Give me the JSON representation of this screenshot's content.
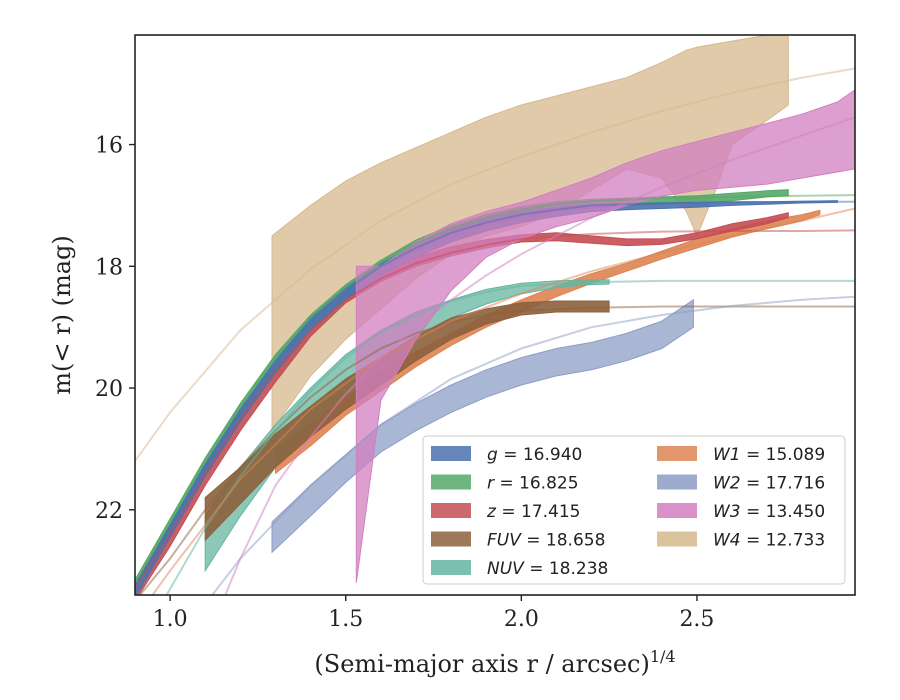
{
  "chart_data": {
    "type": "line",
    "xlabel": "(Semi-major axis r / arcsec)",
    "xlabel_sup": "1/4",
    "ylabel": "m(< r) (mag)",
    "xlim": [
      0.9,
      2.95
    ],
    "ylim": [
      23.4,
      14.2
    ],
    "y_inverted": true,
    "x_ticks": [
      1.0,
      1.5,
      2.0,
      2.5
    ],
    "x_tick_labels": [
      "1.0",
      "1.5",
      "2.0",
      "2.5"
    ],
    "y_ticks": [
      16,
      18,
      20,
      22
    ],
    "y_tick_labels": [
      "16",
      "18",
      "20",
      "22"
    ],
    "grid": false,
    "legend_placement": "lower right",
    "legend_columns": 2,
    "series": [
      {
        "name": "g",
        "value": "16.940",
        "color": "#4c72b0",
        "model": {
          "x": [
            0.9,
            1.0,
            1.1,
            1.2,
            1.3,
            1.4,
            1.5,
            1.6,
            1.7,
            1.8,
            1.9,
            2.0,
            2.1,
            2.2,
            2.4,
            2.6,
            2.8,
            2.95
          ],
          "y": [
            23.3,
            22.3,
            21.3,
            20.4,
            19.6,
            18.9,
            18.4,
            18.0,
            17.7,
            17.45,
            17.28,
            17.15,
            17.07,
            17.0,
            16.96,
            16.95,
            16.94,
            16.94
          ]
        },
        "band": {
          "x": [
            0.9,
            1.0,
            1.1,
            1.2,
            1.3,
            1.4,
            1.5,
            1.6,
            1.7,
            1.8,
            1.9,
            2.0,
            2.1,
            2.2,
            2.3,
            2.4,
            2.5,
            2.6,
            2.7,
            2.8,
            2.9
          ],
          "y_upper": [
            23.25,
            22.25,
            21.25,
            20.35,
            19.55,
            18.85,
            18.35,
            17.95,
            17.65,
            17.4,
            17.23,
            17.1,
            17.03,
            16.98,
            16.97,
            16.96,
            16.95,
            16.94,
            16.94,
            16.93,
            16.92
          ],
          "y_lower": [
            23.45,
            22.45,
            21.45,
            20.55,
            19.75,
            19.05,
            18.55,
            18.15,
            17.85,
            17.6,
            17.42,
            17.28,
            17.18,
            17.1,
            17.07,
            17.05,
            17.03,
            17.0,
            16.98,
            16.96,
            16.95
          ]
        }
      },
      {
        "name": "r",
        "value": "16.825",
        "color": "#55a868",
        "model": {
          "x": [
            0.9,
            1.0,
            1.1,
            1.2,
            1.3,
            1.4,
            1.5,
            1.6,
            1.7,
            1.8,
            1.9,
            2.0,
            2.1,
            2.2,
            2.4,
            2.6,
            2.8,
            2.95
          ],
          "y": [
            23.2,
            22.2,
            21.2,
            20.3,
            19.5,
            18.85,
            18.35,
            17.95,
            17.62,
            17.38,
            17.2,
            17.07,
            16.98,
            16.93,
            16.88,
            16.86,
            16.84,
            16.83
          ]
        },
        "band": {
          "x": [
            0.9,
            1.0,
            1.1,
            1.2,
            1.3,
            1.4,
            1.5,
            1.6,
            1.7,
            1.8,
            1.9,
            2.0,
            2.1,
            2.2,
            2.3,
            2.4,
            2.5,
            2.6,
            2.7,
            2.76
          ],
          "y_upper": [
            23.15,
            22.15,
            21.15,
            20.25,
            19.45,
            18.8,
            18.3,
            17.9,
            17.57,
            17.33,
            17.15,
            17.02,
            16.94,
            16.9,
            16.88,
            16.86,
            16.84,
            16.8,
            16.76,
            16.74
          ],
          "y_lower": [
            23.35,
            22.35,
            21.35,
            20.45,
            19.65,
            19.0,
            18.5,
            18.1,
            17.77,
            17.53,
            17.35,
            17.2,
            17.1,
            17.04,
            17.0,
            16.98,
            16.96,
            16.92,
            16.86,
            16.84
          ]
        }
      },
      {
        "name": "z",
        "value": "17.415",
        "color": "#c44e52",
        "model": {
          "x": [
            0.9,
            1.0,
            1.1,
            1.2,
            1.3,
            1.4,
            1.5,
            1.6,
            1.7,
            1.8,
            1.9,
            2.0,
            2.2,
            2.4,
            2.6,
            2.8,
            2.95
          ],
          "y": [
            23.3,
            22.4,
            21.4,
            20.5,
            19.7,
            19.05,
            18.55,
            18.2,
            17.95,
            17.78,
            17.65,
            17.55,
            17.47,
            17.43,
            17.42,
            17.42,
            17.41
          ]
        },
        "band": {
          "x": [
            0.9,
            1.0,
            1.1,
            1.2,
            1.3,
            1.4,
            1.5,
            1.6,
            1.7,
            1.8,
            1.9,
            2.0,
            2.1,
            2.2,
            2.3,
            2.4,
            2.5,
            2.6,
            2.7,
            2.76
          ],
          "y_upper": [
            23.2,
            22.3,
            21.3,
            20.4,
            19.6,
            18.95,
            18.45,
            18.1,
            17.85,
            17.68,
            17.56,
            17.48,
            17.45,
            17.5,
            17.55,
            17.55,
            17.45,
            17.3,
            17.2,
            17.12
          ],
          "y_lower": [
            23.5,
            22.6,
            21.6,
            20.7,
            19.9,
            19.15,
            18.6,
            18.25,
            18.0,
            17.83,
            17.7,
            17.6,
            17.58,
            17.62,
            17.66,
            17.64,
            17.55,
            17.42,
            17.3,
            17.2
          ]
        }
      },
      {
        "name": "FUV",
        "value": "18.658",
        "color": "#8c613c",
        "model": {
          "x": [
            0.9,
            1.0,
            1.1,
            1.2,
            1.3,
            1.4,
            1.5,
            1.6,
            1.7,
            1.8,
            1.9,
            2.0,
            2.2,
            2.4,
            2.6,
            2.8,
            2.95
          ],
          "y": [
            23.5,
            22.8,
            22.0,
            21.3,
            20.7,
            20.15,
            19.7,
            19.35,
            19.1,
            18.92,
            18.8,
            18.73,
            18.68,
            18.66,
            18.66,
            18.66,
            18.66
          ]
        },
        "band": {
          "x": [
            1.1,
            1.2,
            1.3,
            1.4,
            1.5,
            1.6,
            1.7,
            1.8,
            1.9,
            2.0,
            2.1,
            2.2,
            2.25
          ],
          "y_upper": [
            21.8,
            21.3,
            20.75,
            20.3,
            19.85,
            19.5,
            19.15,
            18.85,
            18.7,
            18.6,
            18.57,
            18.57,
            18.57
          ],
          "y_lower": [
            22.5,
            21.9,
            21.3,
            20.8,
            20.35,
            19.95,
            19.55,
            19.2,
            18.95,
            18.8,
            18.75,
            18.75,
            18.75
          ]
        }
      },
      {
        "name": "NUV",
        "value": "18.238",
        "color": "#64b5a0",
        "model": {
          "x": [
            0.9,
            1.0,
            1.1,
            1.2,
            1.3,
            1.4,
            1.5,
            1.6,
            1.7,
            1.8,
            1.9,
            2.0,
            2.2,
            2.4,
            2.6,
            2.8,
            2.95
          ],
          "y": [
            24.3,
            23.3,
            22.3,
            21.45,
            20.7,
            20.05,
            19.5,
            19.08,
            18.8,
            18.57,
            18.42,
            18.32,
            18.26,
            18.24,
            18.24,
            18.24,
            18.24
          ]
        },
        "band": {
          "x": [
            1.1,
            1.2,
            1.3,
            1.4,
            1.5,
            1.6,
            1.7,
            1.8,
            1.9,
            2.0,
            2.1,
            2.2,
            2.25
          ],
          "y_upper": [
            22.1,
            21.3,
            20.6,
            20.0,
            19.45,
            19.05,
            18.75,
            18.55,
            18.38,
            18.28,
            18.24,
            18.22,
            18.22
          ],
          "y_lower": [
            23.0,
            22.1,
            21.3,
            20.65,
            20.05,
            19.55,
            19.15,
            18.85,
            18.62,
            18.45,
            18.35,
            18.3,
            18.29
          ]
        }
      },
      {
        "name": "W1",
        "value": "15.089",
        "color": "#dd8452",
        "model": {
          "x": [
            0.9,
            1.0,
            1.2,
            1.4,
            1.6,
            1.8,
            2.0,
            2.2,
            2.4,
            2.6,
            2.8,
            2.95
          ],
          "y": [
            23.8,
            23.0,
            21.5,
            20.35,
            19.5,
            18.9,
            18.45,
            18.08,
            17.78,
            17.5,
            17.25,
            17.05
          ]
        },
        "band": {
          "x": [
            1.3,
            1.4,
            1.5,
            1.6,
            1.7,
            1.8,
            1.9,
            2.0,
            2.1,
            2.2,
            2.3,
            2.4,
            2.5,
            2.6,
            2.7,
            2.8,
            2.85
          ],
          "y_upper": [
            21.0,
            20.6,
            20.15,
            19.75,
            19.4,
            19.1,
            18.8,
            18.55,
            18.32,
            18.12,
            17.95,
            17.75,
            17.55,
            17.38,
            17.25,
            17.15,
            17.08
          ],
          "y_lower": [
            21.4,
            20.95,
            20.45,
            20.05,
            19.65,
            19.3,
            19.0,
            18.75,
            18.5,
            18.28,
            18.08,
            17.88,
            17.7,
            17.52,
            17.38,
            17.25,
            17.15
          ]
        }
      },
      {
        "name": "W2",
        "value": "17.716",
        "color": "#8c9dc6",
        "model": {
          "x": [
            0.9,
            1.0,
            1.2,
            1.4,
            1.6,
            1.8,
            2.0,
            2.2,
            2.4,
            2.6,
            2.8,
            2.95
          ],
          "y": [
            25.0,
            24.3,
            22.8,
            21.6,
            20.6,
            19.85,
            19.35,
            19.0,
            18.8,
            18.65,
            18.55,
            18.5
          ]
        },
        "band": {
          "x": [
            1.29,
            1.4,
            1.5,
            1.6,
            1.7,
            1.8,
            1.9,
            2.0,
            2.1,
            2.2,
            2.3,
            2.4,
            2.49
          ],
          "y_upper": [
            22.2,
            21.6,
            21.1,
            20.6,
            20.25,
            19.95,
            19.7,
            19.5,
            19.35,
            19.25,
            19.1,
            18.9,
            18.55
          ],
          "y_lower": [
            22.7,
            22.1,
            21.55,
            21.05,
            20.7,
            20.4,
            20.15,
            19.95,
            19.8,
            19.7,
            19.55,
            19.35,
            19.0
          ]
        }
      },
      {
        "name": "W3",
        "value": "13.450",
        "color": "#d27fc0",
        "model": {
          "x": [
            1.15,
            1.2,
            1.3,
            1.4,
            1.5,
            1.6,
            1.7,
            1.8,
            1.9,
            2.0,
            2.2,
            2.4,
            2.6,
            2.8,
            2.95
          ],
          "y": [
            23.5,
            22.8,
            21.6,
            20.8,
            20.1,
            19.5,
            19.0,
            18.55,
            18.15,
            17.8,
            17.2,
            16.7,
            16.25,
            15.85,
            15.55
          ]
        },
        "band": {
          "x": [
            1.53,
            1.6,
            1.7,
            1.8,
            1.9,
            2.0,
            2.1,
            2.2,
            2.3,
            2.4,
            2.5,
            2.6,
            2.7,
            2.8,
            2.9,
            2.95
          ],
          "y_upper": [
            18.0,
            18.0,
            17.6,
            17.3,
            17.1,
            16.95,
            16.75,
            16.55,
            16.3,
            16.1,
            15.95,
            15.8,
            15.65,
            15.5,
            15.3,
            15.1
          ],
          "y_lower": [
            23.2,
            20.2,
            19.2,
            18.4,
            17.85,
            17.55,
            17.35,
            17.2,
            17.0,
            16.85,
            16.75,
            16.7,
            16.65,
            16.55,
            16.45,
            16.4
          ]
        }
      },
      {
        "name": "W4",
        "value": "12.733",
        "color": "#d5b88d",
        "model": {
          "x": [
            0.9,
            1.0,
            1.2,
            1.4,
            1.6,
            1.8,
            2.0,
            2.2,
            2.4,
            2.6,
            2.8,
            2.95
          ],
          "y": [
            21.2,
            20.4,
            19.05,
            18.05,
            17.25,
            16.65,
            16.2,
            15.8,
            15.45,
            15.15,
            14.9,
            14.75
          ]
        },
        "band": {
          "x": [
            1.29,
            1.4,
            1.5,
            1.6,
            1.7,
            1.8,
            1.9,
            2.0,
            2.1,
            2.2,
            2.3,
            2.4,
            2.47,
            2.5,
            2.55,
            2.6,
            2.7,
            2.76
          ],
          "y_upper": [
            17.5,
            17.0,
            16.6,
            16.3,
            16.05,
            15.8,
            15.55,
            15.35,
            15.2,
            15.05,
            14.9,
            14.65,
            14.45,
            14.4,
            14.35,
            14.3,
            14.2,
            14.1
          ],
          "y_lower": [
            20.7,
            19.8,
            19.2,
            18.7,
            18.2,
            17.8,
            17.5,
            17.35,
            17.1,
            16.75,
            16.4,
            16.55,
            17.1,
            17.5,
            16.8,
            16.0,
            15.6,
            15.35
          ]
        }
      }
    ]
  }
}
